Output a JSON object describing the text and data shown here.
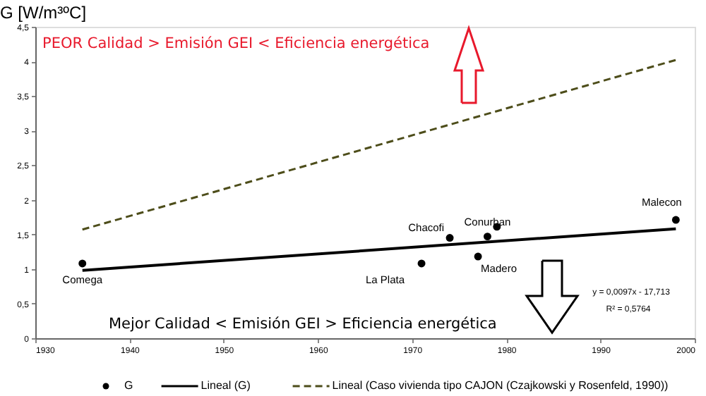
{
  "chart_data": {
    "type": "scatter",
    "ylabel": "G [W/m³ºC]",
    "xlim": [
      1930,
      2000
    ],
    "xticks": [
      1930,
      1940,
      1950,
      1960,
      1970,
      1980,
      1990,
      2000
    ],
    "ylim": [
      0,
      4.5
    ],
    "yticks": [
      0,
      {
        "value": 0.5,
        "label": "0,5"
      },
      1,
      {
        "value": 1.5,
        "label": "1,5"
      },
      2,
      {
        "value": 2.5,
        "label": "2,5"
      },
      3,
      {
        "value": 3.5,
        "label": "3,5"
      },
      4,
      {
        "value": 4.5,
        "label": "4,5"
      }
    ],
    "grid": false,
    "legend": "bottom",
    "series": [
      {
        "name": "G",
        "marker": "circle",
        "color": "#000000",
        "x": [
          1935,
          1971,
          1974,
          1978,
          1979,
          1977,
          1998
        ],
        "values": [
          1.08,
          1.08,
          1.45,
          1.47,
          1.61,
          1.18,
          1.71
        ]
      },
      {
        "name": "Lineal (G)",
        "type": "line",
        "line_style": "solid",
        "color": "#000000",
        "x": [
          1935,
          1998
        ],
        "values": [
          0.98,
          1.58
        ]
      },
      {
        "name": "Lineal (Caso vivienda tipo CAJON (Czajkowski y Rosenfeld, 1990))",
        "type": "line",
        "line_style": "dashed",
        "color": "#4d4d1a",
        "x": [
          1935,
          1998
        ],
        "values": [
          1.57,
          4.02
        ]
      }
    ],
    "annotations": [
      {
        "text": "Comega",
        "x": 1935,
        "y": 1.08
      },
      {
        "text": "La Plata",
        "x": 1971,
        "y": 1.08
      },
      {
        "text": "Chacofi",
        "x": 1974,
        "y": 1.45
      },
      {
        "text": "Conurban",
        "x": 1978,
        "y": 1.47
      },
      {
        "text": "Madero",
        "x": 1977,
        "y": 1.18
      },
      {
        "text": "Malecon",
        "x": 1998,
        "y": 1.71
      },
      "PEOR Calidad > Emisión GEI < Eficiencia energética",
      "Mejor Calidad < Emisión GEI > Eficiencia energética",
      "y = 0,0097x - 17,713",
      "R² = 0,5764"
    ]
  }
}
